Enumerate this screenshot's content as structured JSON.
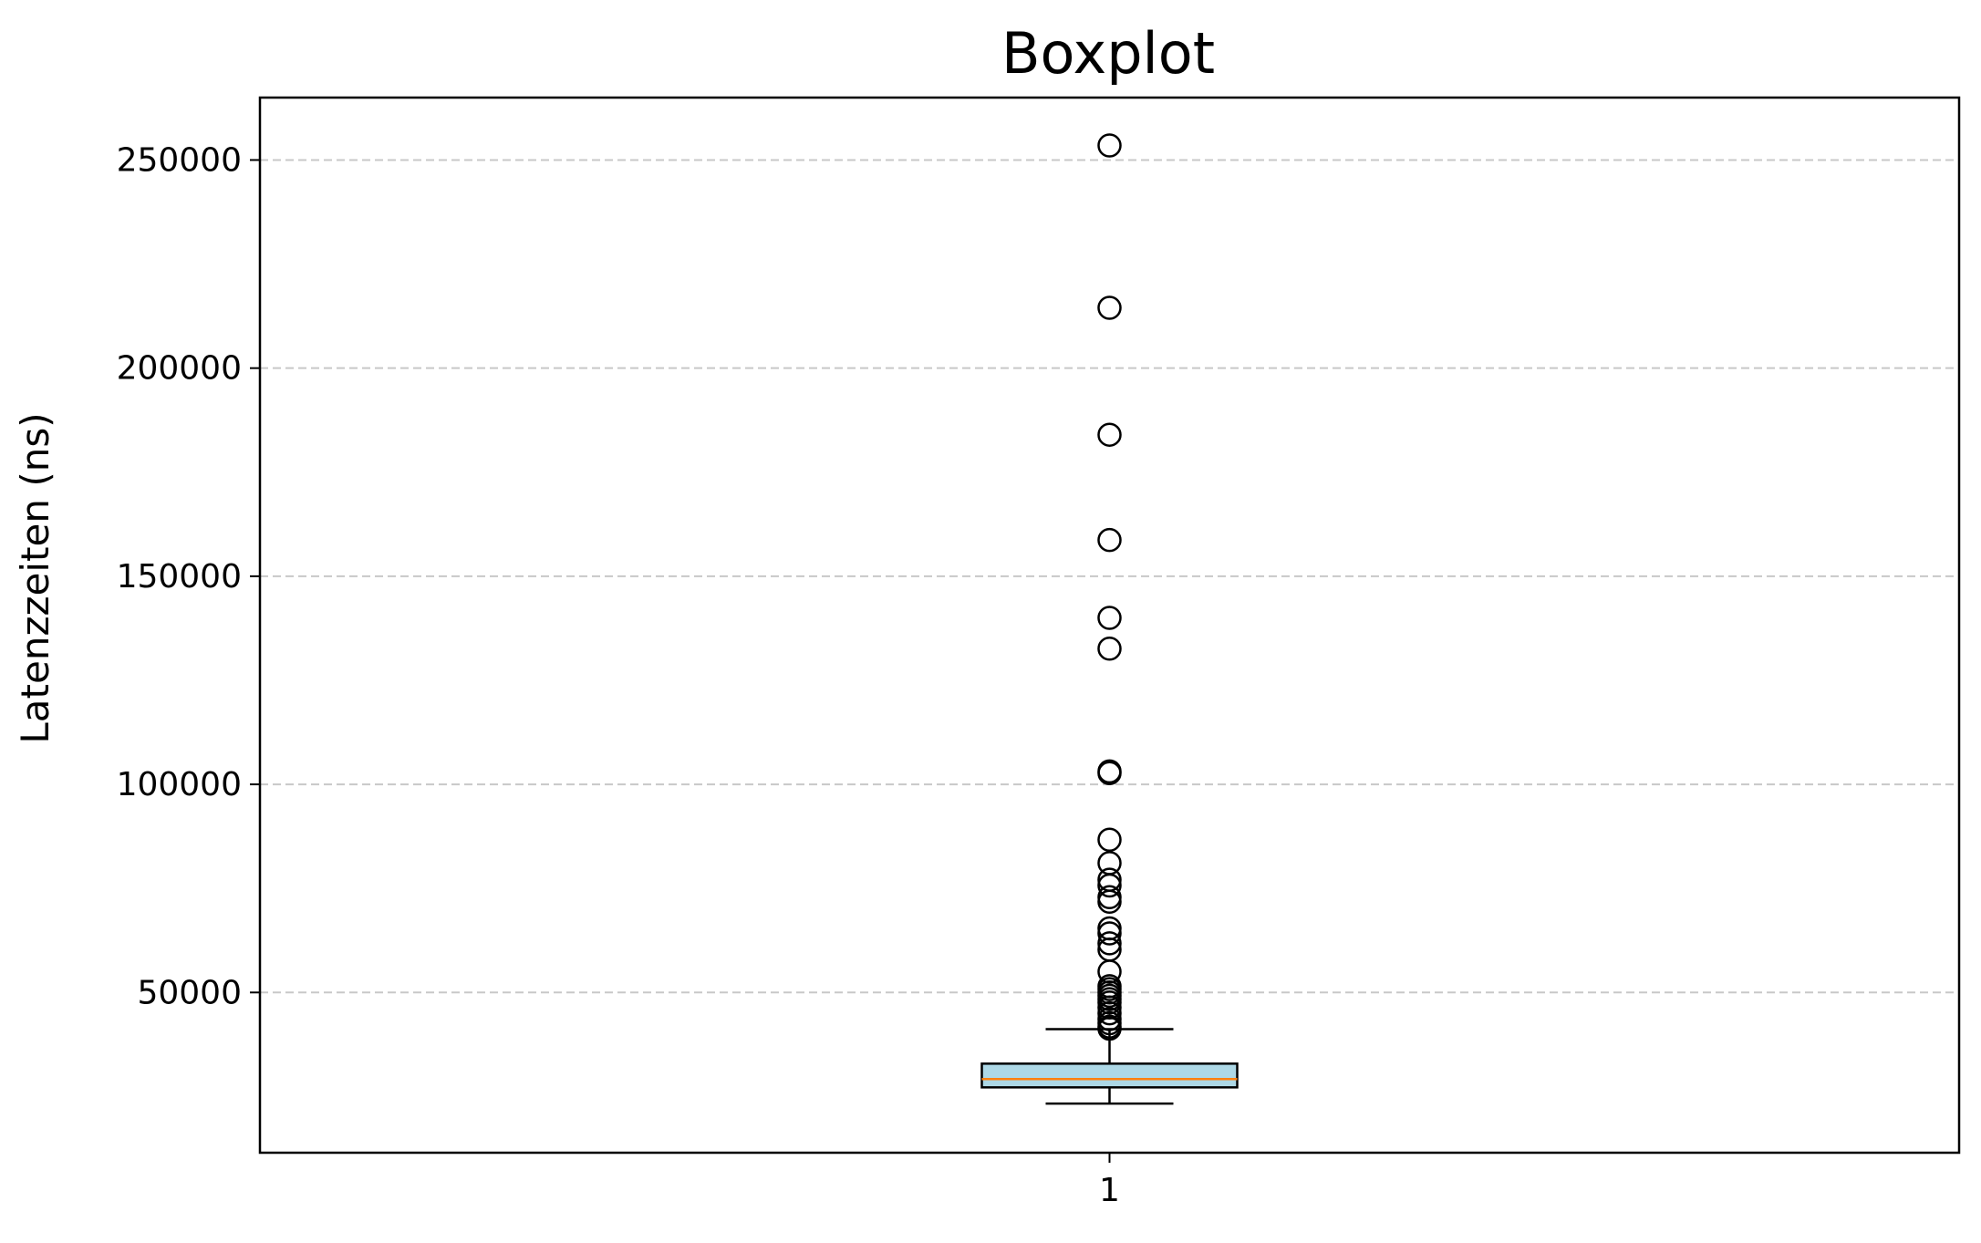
{
  "chart_data": {
    "type": "boxplot",
    "title": "Boxplot",
    "xlabel": "",
    "ylabel": "Latenzzeiten (ns)",
    "categories": [
      "1"
    ],
    "ylim": [
      11500,
      265000
    ],
    "y_ticks": [
      50000,
      100000,
      150000,
      200000,
      250000
    ],
    "grid": {
      "axis": "y",
      "style": "dashed",
      "color": "#c8c8c8"
    },
    "box": {
      "category": "1",
      "whisker_low": 23300,
      "q1": 27200,
      "median": 29200,
      "q3": 32900,
      "whisker_high": 41200,
      "box_fill": "#add8e6",
      "median_color": "#ff7f0e",
      "outliers": [
        253500,
        214500,
        184000,
        158700,
        140000,
        132600,
        103100,
        102700,
        86700,
        81100,
        77100,
        75700,
        72900,
        71800,
        65400,
        64200,
        61800,
        60300,
        55000,
        51500,
        50800,
        50000,
        49200,
        48400,
        47600,
        46400,
        45000,
        43600,
        42600,
        41800,
        41300
      ]
    }
  }
}
